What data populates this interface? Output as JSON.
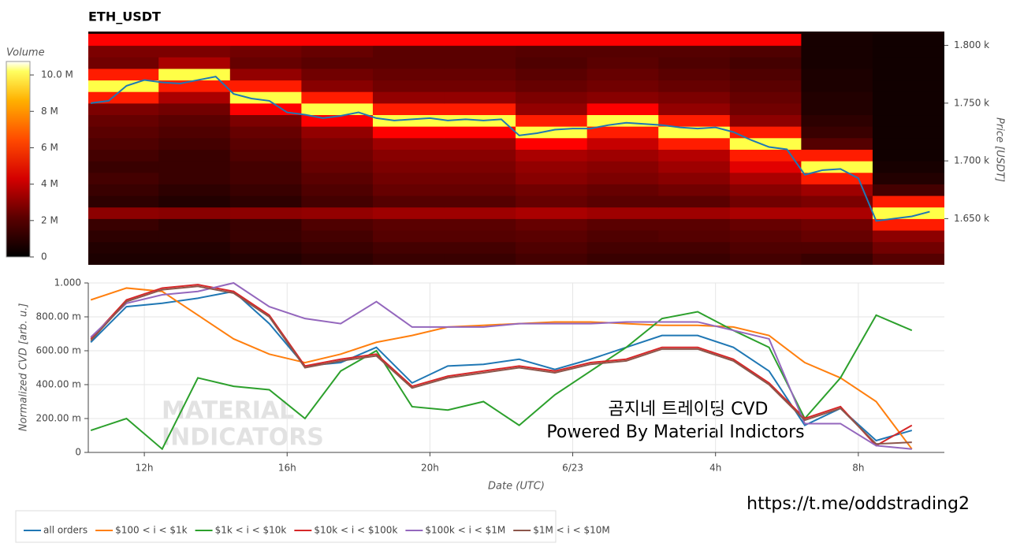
{
  "chart_data": [
    {
      "type": "heatmap",
      "title": "ETH_USDT",
      "y_label": "Price [USDT]",
      "xlim": [
        10.43,
        34.41
      ],
      "ylim": [
        1610,
        1812
      ],
      "yticks": [
        {
          "value": 1650,
          "label": "1.650 k"
        },
        {
          "value": 1700,
          "label": "1.700 k"
        },
        {
          "value": 1750,
          "label": "1.750 k"
        },
        {
          "value": 1800,
          "label": "1.800 k"
        }
      ],
      "x_bins": [
        10.4,
        12.4,
        14.4,
        16.4,
        18.4,
        20.4,
        22.4,
        24.4,
        26.4,
        28.4,
        30.4,
        32.4,
        34.4
      ],
      "y_bins": [
        1610,
        1620,
        1630,
        1640,
        1650,
        1660,
        1670,
        1680,
        1690,
        1700,
        1710,
        1720,
        1730,
        1740,
        1750,
        1760,
        1770,
        1780,
        1790,
        1800,
        1810
      ],
      "z": [
        [
          0.5,
          0.5,
          0.6,
          0.8,
          1.0,
          1.0,
          1.2,
          1.0,
          1.0,
          1.2,
          1.0,
          1.5
        ],
        [
          0.6,
          0.6,
          0.8,
          1.0,
          1.2,
          1.2,
          1.4,
          1.2,
          1.2,
          1.4,
          1.4,
          2.0
        ],
        [
          0.8,
          0.8,
          1.0,
          1.2,
          1.5,
          1.5,
          1.6,
          1.4,
          1.5,
          1.6,
          1.8,
          2.5
        ],
        [
          1.0,
          0.8,
          1.0,
          1.4,
          1.6,
          1.6,
          1.8,
          1.6,
          1.6,
          1.8,
          2.0,
          5.0
        ],
        [
          2.5,
          2.4,
          2.5,
          2.6,
          2.8,
          2.8,
          3.0,
          2.8,
          2.8,
          3.0,
          3.0,
          9.5
        ],
        [
          0.8,
          0.6,
          0.8,
          1.2,
          1.5,
          1.5,
          1.8,
          1.6,
          1.6,
          2.0,
          2.2,
          5.0
        ],
        [
          1.0,
          0.8,
          1.0,
          1.4,
          1.8,
          1.8,
          2.0,
          1.8,
          2.0,
          2.4,
          2.8,
          1.2
        ],
        [
          1.2,
          1.0,
          1.2,
          1.6,
          2.0,
          2.0,
          2.4,
          2.2,
          2.4,
          3.0,
          5.0,
          0.6
        ],
        [
          1.0,
          1.0,
          1.2,
          1.8,
          2.2,
          2.2,
          2.6,
          2.4,
          2.8,
          4.0,
          9.5,
          0.4
        ],
        [
          1.2,
          1.0,
          1.4,
          2.0,
          2.4,
          2.4,
          3.0,
          2.8,
          3.2,
          5.0,
          5.0,
          0.3
        ],
        [
          1.4,
          1.2,
          1.6,
          2.2,
          2.8,
          2.8,
          4.5,
          3.5,
          5.0,
          9.5,
          1.5,
          0.3
        ],
        [
          1.6,
          1.4,
          1.8,
          2.6,
          4.5,
          4.5,
          9.5,
          5.0,
          9.5,
          5.0,
          1.0,
          0.3
        ],
        [
          1.8,
          1.6,
          2.2,
          4.5,
          9.5,
          9.5,
          5.0,
          9.5,
          5.0,
          2.5,
          0.8,
          0.3
        ],
        [
          2.2,
          2.0,
          4.5,
          9.5,
          5.0,
          5.0,
          2.6,
          4.5,
          2.6,
          2.0,
          0.6,
          0.3
        ],
        [
          5.0,
          3.0,
          9.5,
          5.0,
          2.6,
          2.6,
          2.2,
          2.4,
          2.2,
          1.8,
          0.6,
          0.3
        ],
        [
          9.5,
          5.0,
          5.0,
          2.4,
          2.0,
          2.0,
          1.8,
          2.0,
          1.8,
          1.6,
          0.5,
          0.3
        ],
        [
          5.0,
          9.5,
          2.6,
          2.0,
          1.8,
          1.8,
          1.6,
          1.8,
          1.6,
          1.4,
          0.5,
          0.3
        ],
        [
          2.0,
          3.0,
          1.8,
          1.6,
          1.6,
          1.6,
          1.4,
          1.6,
          1.4,
          1.2,
          0.4,
          0.3
        ],
        [
          2.2,
          2.2,
          2.0,
          1.8,
          1.6,
          1.6,
          1.5,
          1.5,
          1.5,
          1.4,
          0.4,
          0.3
        ],
        [
          4.5,
          4.5,
          4.5,
          4.5,
          4.5,
          4.5,
          4.5,
          4.5,
          4.5,
          4.5,
          0.4,
          0.3
        ]
      ],
      "colorbar_label": "Volume",
      "zlim": [
        0,
        10.74
      ],
      "colorbar_ticks": [
        0,
        {
          "value": 2,
          "label": "2 M"
        },
        {
          "value": 4,
          "label": "4 M"
        },
        {
          "value": 6,
          "label": "6 M"
        },
        {
          "value": 8,
          "label": "8 M"
        },
        {
          "value": 10,
          "label": "10.0 M"
        }
      ],
      "price_color": "#1f77b4",
      "price_x": [
        10.5,
        11,
        11.5,
        12,
        12.5,
        13,
        13.5,
        14,
        14.5,
        15,
        15.5,
        16,
        16.5,
        17,
        17.5,
        18,
        18.5,
        19,
        19.5,
        20,
        20.5,
        21,
        21.5,
        22,
        22.5,
        23,
        23.5,
        24,
        24.5,
        25,
        25.5,
        26,
        26.5,
        27,
        27.5,
        28,
        28.5,
        29,
        29.5,
        30,
        30.5,
        31,
        31.5,
        32,
        32.5,
        33,
        33.5,
        34
      ],
      "price_values": [
        1750,
        1752,
        1765,
        1770,
        1768,
        1767,
        1770,
        1773,
        1758,
        1754,
        1752,
        1742,
        1740,
        1737,
        1739,
        1742,
        1737,
        1735,
        1736,
        1737,
        1735,
        1736,
        1735,
        1736,
        1722,
        1724,
        1727,
        1728,
        1728,
        1731,
        1733,
        1732,
        1731,
        1729,
        1728,
        1729,
        1725,
        1718,
        1712,
        1710,
        1688,
        1692,
        1693,
        1685,
        1648,
        1650,
        1652,
        1656
      ]
    },
    {
      "type": "line",
      "y_label": "Normalized CVD [arb. u.]",
      "x_label": "Date (UTC)",
      "grid": true,
      "xlim": [
        10.43,
        34.41
      ],
      "ylim": [
        0,
        1
      ],
      "xticks": [
        {
          "value": 12,
          "label": "12h"
        },
        {
          "value": 16,
          "label": "16h"
        },
        {
          "value": 20,
          "label": "20h"
        },
        {
          "value": 24,
          "label": "6/23"
        },
        {
          "value": 28,
          "label": "4h"
        },
        {
          "value": 32,
          "label": "8h"
        }
      ],
      "yticks": [
        0,
        {
          "value": 0.2,
          "label": "200.00 m"
        },
        {
          "value": 0.4,
          "label": "400.00 m"
        },
        {
          "value": 0.6,
          "label": "600.00 m"
        },
        {
          "value": 0.8,
          "label": "800.00 m"
        },
        {
          "value": 1,
          "label": "1.000"
        }
      ],
      "x": [
        10.5,
        11.5,
        12.5,
        13.5,
        14.5,
        15.5,
        16.5,
        17.5,
        18.5,
        19.5,
        20.5,
        21.5,
        22.5,
        23.5,
        24.5,
        25.5,
        26.5,
        27.5,
        28.5,
        29.5,
        30.5,
        31.5,
        32.5,
        33.5
      ],
      "series": [
        {
          "name": "all orders",
          "color": "#1f77b4",
          "values": [
            0.65,
            0.86,
            0.88,
            0.91,
            0.95,
            0.76,
            0.51,
            0.53,
            0.62,
            0.41,
            0.51,
            0.52,
            0.55,
            0.49,
            0.55,
            0.62,
            0.69,
            0.69,
            0.62,
            0.48,
            0.16,
            0.26,
            0.07,
            0.13
          ]
        },
        {
          "name": "$100 < i < $1k",
          "color": "#ff7f0e",
          "values": [
            0.9,
            0.97,
            0.95,
            0.81,
            0.67,
            0.58,
            0.53,
            0.58,
            0.65,
            0.69,
            0.74,
            0.75,
            0.76,
            0.77,
            0.77,
            0.76,
            0.75,
            0.75,
            0.74,
            0.69,
            0.53,
            0.44,
            0.3,
            0.02
          ]
        },
        {
          "name": "$1k < i < $10k",
          "color": "#2ca02c",
          "values": [
            0.13,
            0.2,
            0.02,
            0.44,
            0.39,
            0.37,
            0.2,
            0.48,
            0.6,
            0.27,
            0.25,
            0.3,
            0.16,
            0.34,
            0.48,
            0.62,
            0.79,
            0.83,
            0.72,
            0.62,
            0.2,
            0.44,
            0.81,
            0.72
          ]
        },
        {
          "name": "$10k < i < $100k",
          "color": "#d62728",
          "values": [
            0.67,
            0.9,
            0.97,
            0.99,
            0.95,
            0.81,
            0.51,
            0.55,
            0.58,
            0.39,
            0.45,
            0.48,
            0.51,
            0.48,
            0.53,
            0.55,
            0.62,
            0.62,
            0.55,
            0.41,
            0.2,
            0.27,
            0.04,
            0.16
          ]
        },
        {
          "name": "$100k < i < $1M",
          "color": "#9467bd",
          "values": [
            0.68,
            0.88,
            0.93,
            0.95,
            1.0,
            0.86,
            0.79,
            0.76,
            0.89,
            0.74,
            0.74,
            0.74,
            0.76,
            0.76,
            0.76,
            0.77,
            0.77,
            0.77,
            0.72,
            0.67,
            0.17,
            0.17,
            0.04,
            0.02
          ]
        },
        {
          "name": "$1M < i < $10M",
          "color": "#8c564b",
          "values": [
            0.66,
            0.89,
            0.96,
            0.98,
            0.94,
            0.8,
            0.5,
            0.54,
            0.57,
            0.38,
            0.44,
            0.47,
            0.5,
            0.47,
            0.52,
            0.54,
            0.61,
            0.61,
            0.54,
            0.4,
            0.19,
            0.26,
            0.05,
            0.06
          ]
        }
      ],
      "annotations": [
        "곰지네 트레이딩 CVD",
        "Powered By Material Indictors"
      ],
      "watermark": [
        "MATERIAL",
        "INDICATORS"
      ]
    }
  ],
  "footer_link": "https://t.me/oddstrading2"
}
